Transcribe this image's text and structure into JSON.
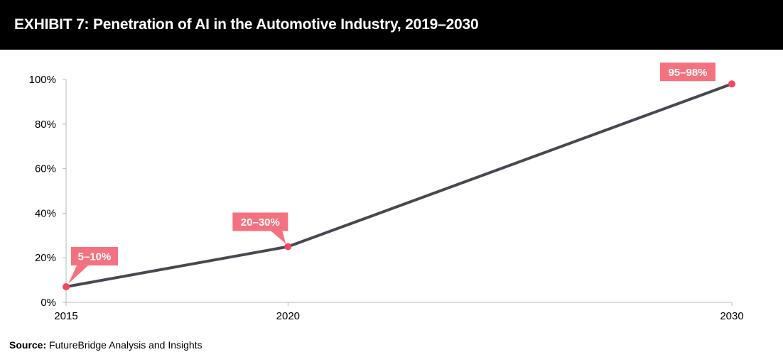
{
  "header": {
    "title": "EXHIBIT 7: Penetration of AI in the Automotive Industry, 2019–2030"
  },
  "source": {
    "label": "Source:",
    "text": " FutureBridge Analysis and Insights"
  },
  "chart_data": {
    "type": "line",
    "x": [
      2015,
      2020,
      2030
    ],
    "xticks": [
      "2015",
      "2020",
      "2030"
    ],
    "values": [
      7,
      25,
      98
    ],
    "data_labels": [
      "5–10%",
      "20–30%",
      "95–98%"
    ],
    "ylim": [
      0,
      100
    ],
    "yticks": [
      "0%",
      "20%",
      "40%",
      "60%",
      "80%",
      "100%"
    ],
    "ytick_values": [
      0,
      20,
      40,
      60,
      80,
      100
    ],
    "grid": false,
    "colors": {
      "line": "#4a4750",
      "marker": "#f0485e",
      "label_bg": "#f4727f",
      "label_text": "#ffffff",
      "axis": "#b8b8b8"
    }
  }
}
